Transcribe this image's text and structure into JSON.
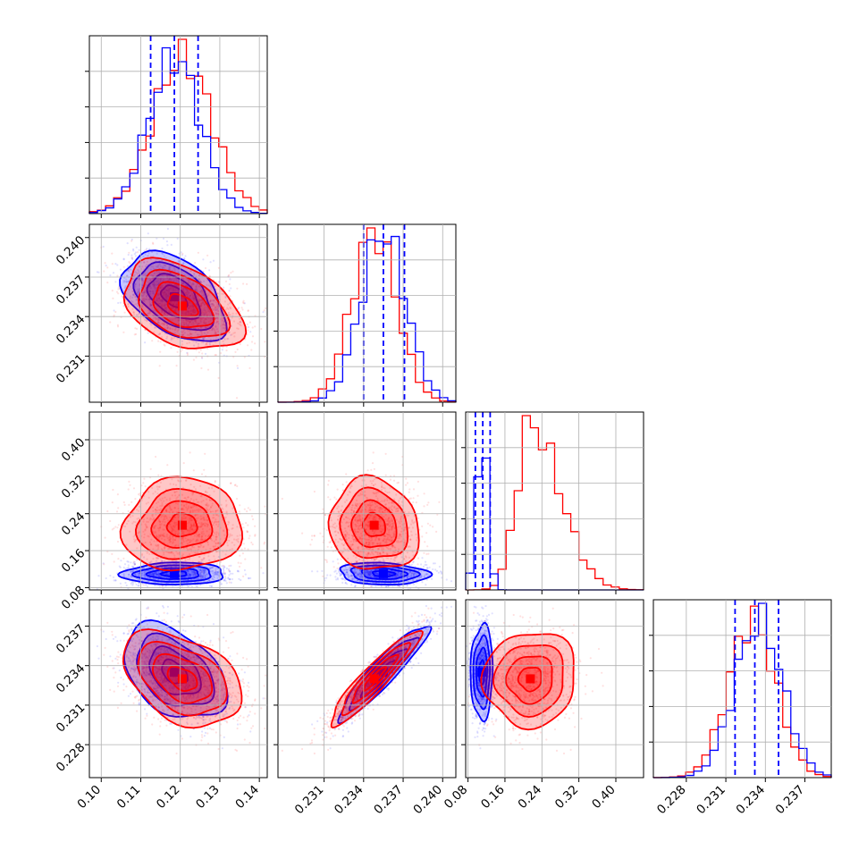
{
  "chart_data": {
    "type": "scatter",
    "layout": "corner",
    "grid": true,
    "colors": {
      "set_a": "#0000ff",
      "set_b": "#ff0000",
      "grid": "#b0b0b0"
    },
    "parameters": [
      {
        "range": [
          0.097,
          0.142
        ],
        "ticks": [
          "0.10",
          "0.11",
          "0.12",
          "0.13",
          "0.14"
        ]
      },
      {
        "range": [
          0.2275,
          0.241
        ],
        "ticks": [
          "0.231",
          "0.234",
          "0.237",
          "0.240"
        ]
      },
      {
        "range": [
          0.075,
          0.46
        ],
        "ticks": [
          "0.08",
          "0.16",
          "0.24",
          "0.32",
          "0.40"
        ]
      },
      {
        "range": [
          0.2255,
          0.239
        ],
        "ticks": [
          "0.228",
          "0.231",
          "0.234",
          "0.237"
        ]
      }
    ],
    "series": [
      {
        "color": "#0000ff",
        "means": [
          0.1185,
          0.2355,
          0.11,
          0.2335
        ],
        "sds": [
          0.0065,
          0.0017,
          0.012,
          0.0018
        ],
        "quantiles": [
          [
            0.1125,
            0.1185,
            0.1245
          ],
          [
            0.234,
            0.2355,
            0.2371
          ],
          [
            0.096,
            0.112,
            0.128
          ],
          [
            0.2317,
            0.2332,
            0.235
          ]
        ]
      },
      {
        "color": "#ff0000",
        "means": [
          0.1205,
          0.2348,
          0.215,
          0.233
        ],
        "sds": [
          0.0075,
          0.0017,
          0.05,
          0.0018
        ],
        "quantiles": []
      }
    ],
    "correlations": {
      "0-1": [
        -0.45,
        -0.4
      ],
      "0-2": [
        0.05,
        0.05
      ],
      "0-3": [
        -0.4,
        -0.4
      ],
      "1-2": [
        -0.15,
        -0.1
      ],
      "1-3": [
        0.93,
        0.93
      ],
      "2-3": [
        0.05,
        0.05
      ]
    },
    "title": "",
    "xlabel": "",
    "ylabel": ""
  }
}
